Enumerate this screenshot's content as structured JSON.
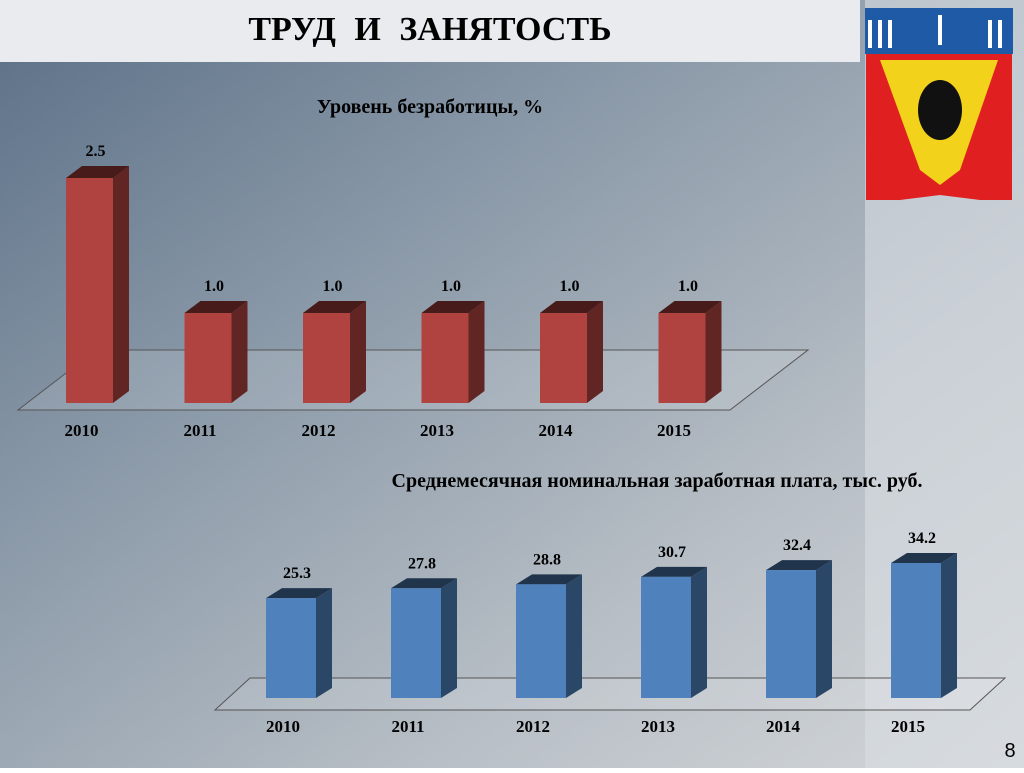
{
  "slide": {
    "title": "ТРУД И ЗАНЯТОСТЬ",
    "page_number": 8
  },
  "chart_data": [
    {
      "type": "bar3d",
      "title": "Уровень безработицы, %",
      "categories": [
        "2010",
        "2011",
        "2012",
        "2013",
        "2014",
        "2015"
      ],
      "values": [
        2.5,
        1.0,
        1.0,
        1.0,
        1.0,
        1.0
      ],
      "value_labels": [
        "2.5",
        "1.0",
        "1.0",
        "1.0",
        "1.0",
        "1.0"
      ],
      "color": "#b0433f"
    },
    {
      "type": "bar3d",
      "title": "Среднемесячная номинальная заработная плата, тыс. руб.",
      "categories": [
        "2010",
        "2011",
        "2012",
        "2013",
        "2014",
        "2015"
      ],
      "values": [
        25.3,
        27.8,
        28.8,
        30.7,
        32.4,
        34.2
      ],
      "color": "#4f81bd"
    }
  ]
}
